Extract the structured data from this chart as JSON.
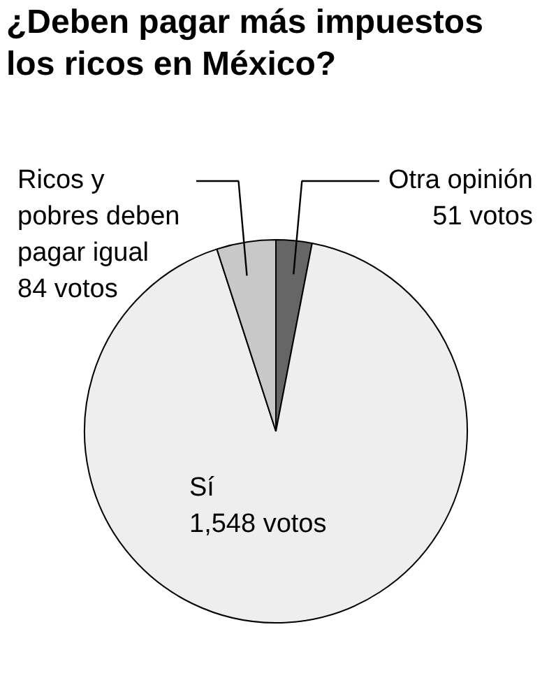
{
  "chart_data": {
    "type": "pie",
    "title": "¿Deben pagar más impuestos los ricos en México?",
    "categories": [
      "Otra opinión",
      "Sí",
      "Ricos y pobres deben pagar igual"
    ],
    "values": [
      51,
      1548,
      84
    ],
    "value_labels": [
      "51 votos",
      "1,548 votos",
      "84 votos"
    ],
    "colors": [
      "#666666",
      "#eeeeee",
      "#c8c8c8"
    ]
  }
}
